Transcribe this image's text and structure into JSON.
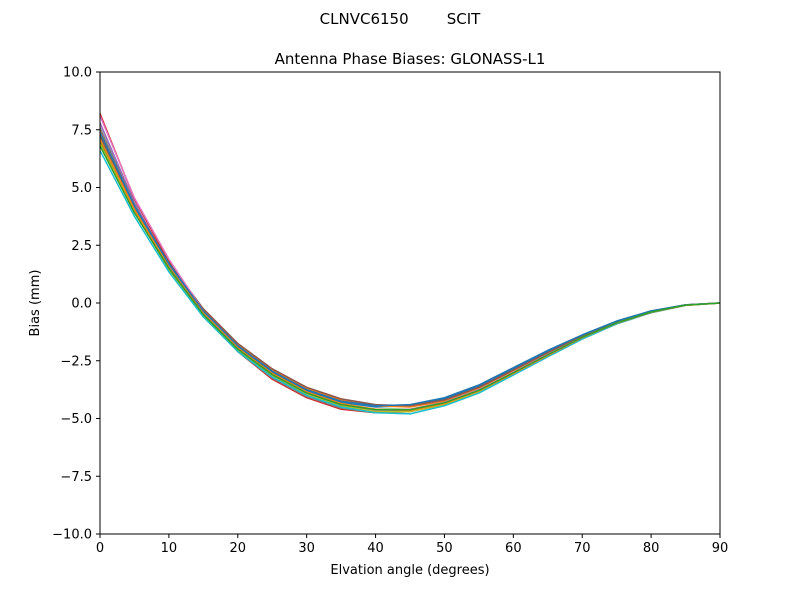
{
  "suptitle": "CLNVC6150        SCIT",
  "chart_data": {
    "type": "line",
    "title": "Antenna Phase Biases: GLONASS-L1",
    "xlabel": "Elvation angle (degrees)",
    "ylabel": "Bias (mm)",
    "xlim": [
      0,
      90
    ],
    "ylim": [
      -10,
      10
    ],
    "xticks": [
      0,
      10,
      20,
      30,
      40,
      50,
      60,
      70,
      80,
      90
    ],
    "xtick_labels": [
      "0",
      "10",
      "20",
      "30",
      "40",
      "50",
      "60",
      "70",
      "80",
      "90"
    ],
    "yticks": [
      -10,
      -7.5,
      -5,
      -2.5,
      0,
      2.5,
      5,
      7.5,
      10
    ],
    "ytick_labels": [
      "−10.0",
      "−7.5",
      "−5.0",
      "−2.5",
      "0.0",
      "2.5",
      "5.0",
      "7.5",
      "10.0"
    ],
    "grid": false,
    "legend": "none",
    "x": [
      0,
      5,
      10,
      15,
      20,
      25,
      30,
      35,
      40,
      45,
      50,
      55,
      60,
      65,
      70,
      75,
      80,
      85,
      90
    ],
    "series": [
      {
        "color": "#1f77b4",
        "values": [
          7.2,
          4.1,
          1.6,
          -0.4,
          -1.9,
          -3.0,
          -3.8,
          -4.3,
          -4.5,
          -4.45,
          -4.15,
          -3.6,
          -2.85,
          -2.1,
          -1.4,
          -0.8,
          -0.35,
          -0.08,
          0.0
        ]
      },
      {
        "color": "#ff7f0e",
        "values": [
          7.5,
          4.3,
          1.7,
          -0.3,
          -1.8,
          -2.9,
          -3.7,
          -4.2,
          -4.45,
          -4.5,
          -4.25,
          -3.7,
          -2.95,
          -2.2,
          -1.45,
          -0.85,
          -0.38,
          -0.09,
          0.0
        ]
      },
      {
        "color": "#2ca02c",
        "values": [
          7.0,
          4.0,
          1.5,
          -0.5,
          -2.0,
          -3.1,
          -3.9,
          -4.4,
          -4.6,
          -4.6,
          -4.3,
          -3.75,
          -3.0,
          -2.25,
          -1.5,
          -0.87,
          -0.4,
          -0.1,
          0.0
        ]
      },
      {
        "color": "#d62728",
        "values": [
          8.2,
          4.5,
          1.8,
          -0.45,
          -2.1,
          -3.3,
          -4.1,
          -4.6,
          -4.75,
          -4.7,
          -4.4,
          -3.85,
          -3.1,
          -2.3,
          -1.55,
          -0.9,
          -0.42,
          -0.1,
          0.0
        ]
      },
      {
        "color": "#9467bd",
        "values": [
          7.8,
          4.35,
          1.65,
          -0.5,
          -2.05,
          -3.2,
          -4.0,
          -4.5,
          -4.7,
          -4.65,
          -4.35,
          -3.8,
          -3.05,
          -2.28,
          -1.52,
          -0.88,
          -0.41,
          -0.1,
          0.0
        ]
      },
      {
        "color": "#8c564b",
        "values": [
          7.3,
          4.2,
          1.75,
          -0.25,
          -1.75,
          -2.85,
          -3.65,
          -4.15,
          -4.4,
          -4.45,
          -4.2,
          -3.65,
          -2.9,
          -2.15,
          -1.42,
          -0.82,
          -0.36,
          -0.08,
          0.0
        ]
      },
      {
        "color": "#e377c2",
        "values": [
          8.1,
          4.55,
          1.9,
          -0.35,
          -1.95,
          -3.15,
          -3.95,
          -4.45,
          -4.65,
          -4.6,
          -4.3,
          -3.75,
          -3.0,
          -2.22,
          -1.48,
          -0.86,
          -0.39,
          -0.09,
          0.0
        ]
      },
      {
        "color": "#7f7f7f",
        "values": [
          7.6,
          4.25,
          1.6,
          -0.55,
          -2.1,
          -3.25,
          -4.05,
          -4.55,
          -4.75,
          -4.7,
          -4.4,
          -3.85,
          -3.1,
          -2.32,
          -1.55,
          -0.9,
          -0.42,
          -0.1,
          0.0
        ]
      },
      {
        "color": "#bcbd22",
        "values": [
          6.9,
          3.95,
          1.45,
          -0.55,
          -2.05,
          -3.15,
          -3.95,
          -4.45,
          -4.7,
          -4.7,
          -4.4,
          -3.85,
          -3.1,
          -2.3,
          -1.53,
          -0.89,
          -0.41,
          -0.1,
          0.0
        ]
      },
      {
        "color": "#17becf",
        "values": [
          6.6,
          3.75,
          1.35,
          -0.6,
          -2.1,
          -3.2,
          -4.0,
          -4.5,
          -4.75,
          -4.8,
          -4.45,
          -3.9,
          -3.12,
          -2.33,
          -1.56,
          -0.9,
          -0.42,
          -0.1,
          0.0
        ]
      },
      {
        "color": "#1f77b4",
        "values": [
          7.4,
          4.2,
          1.7,
          -0.35,
          -1.85,
          -2.95,
          -3.75,
          -4.25,
          -4.45,
          -4.4,
          -4.1,
          -3.55,
          -2.8,
          -2.05,
          -1.38,
          -0.78,
          -0.34,
          -0.08,
          0.0
        ]
      },
      {
        "color": "#ff7f0e",
        "values": [
          7.1,
          4.05,
          1.55,
          -0.45,
          -1.95,
          -3.05,
          -3.85,
          -4.35,
          -4.6,
          -4.65,
          -4.35,
          -3.8,
          -3.05,
          -2.27,
          -1.5,
          -0.87,
          -0.4,
          -0.1,
          0.0
        ]
      },
      {
        "color": "#2ca02c",
        "values": [
          6.8,
          3.9,
          1.5,
          -0.5,
          -2.0,
          -3.1,
          -3.9,
          -4.4,
          -4.62,
          -4.62,
          -4.32,
          -3.78,
          -3.02,
          -2.24,
          -1.48,
          -0.86,
          -0.39,
          -0.09,
          0.0
        ]
      }
    ]
  }
}
